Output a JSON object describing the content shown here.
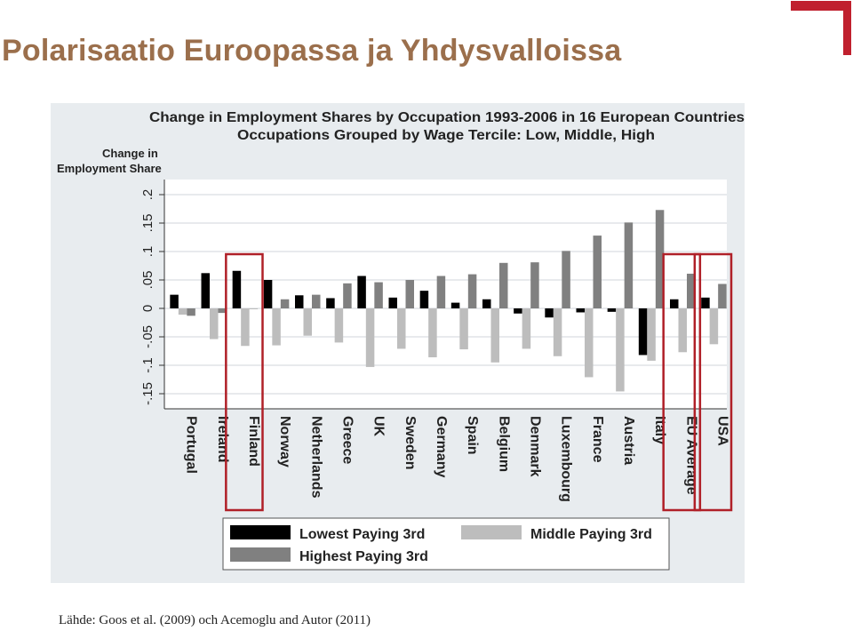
{
  "slide": {
    "title": "Polarisaatio Euroopassa ja Yhdysvalloissa",
    "source": "Lähde: Goos et al. (2009) och Acemoglu and Autor  (2011)",
    "accent_color": "#c0202e",
    "title_color": "#9b6f4c"
  },
  "chart_data": {
    "type": "bar",
    "title": "Change in Employment Shares by Occupation 1993-2006 in 16 European Countries",
    "subtitle": "Occupations Grouped by Wage Tercile: Low, Middle, High",
    "ylabel_line1": "Change in",
    "ylabel_line2": "Employment Share",
    "ylim": [
      -0.17,
      0.22
    ],
    "yticks": [
      -0.15,
      -0.1,
      -0.05,
      0,
      0.05,
      0.1,
      0.15,
      0.2
    ],
    "ytick_labels": [
      "-.15",
      "-.1",
      "-.05",
      "0",
      ".05",
      ".1",
      ".15",
      ".2"
    ],
    "grid": true,
    "legend_position": "bottom",
    "categories": [
      "Portugal",
      "Ireland",
      "Finland",
      "Norway",
      "Netherlands",
      "Greece",
      "UK",
      "Sweden",
      "Germany",
      "Spain",
      "Belgium",
      "Denmark",
      "Luxembourg",
      "France",
      "Austria",
      "Italy",
      "EU Average",
      "USA"
    ],
    "series": [
      {
        "name": "Lowest Paying 3rd",
        "color": "#000000",
        "values": [
          0.024,
          0.062,
          0.066,
          0.05,
          0.023,
          0.018,
          0.057,
          0.019,
          0.031,
          0.01,
          0.016,
          -0.009,
          -0.016,
          -0.007,
          -0.006,
          -0.082,
          0.016,
          0.019
        ]
      },
      {
        "name": "Middle Paying 3rd",
        "color": "#bdbdbd",
        "values": [
          -0.011,
          -0.054,
          -0.066,
          -0.065,
          -0.048,
          -0.06,
          -0.103,
          -0.071,
          -0.086,
          -0.072,
          -0.095,
          -0.071,
          -0.084,
          -0.121,
          -0.146,
          -0.092,
          -0.077,
          -0.063
        ]
      },
      {
        "name": "Highest Paying 3rd",
        "color": "#808080",
        "values": [
          -0.013,
          -0.008,
          0.0,
          0.016,
          0.024,
          0.044,
          0.046,
          0.05,
          0.057,
          0.06,
          0.08,
          0.081,
          0.101,
          0.128,
          0.151,
          0.173,
          0.061,
          0.043
        ]
      }
    ],
    "highlighted": [
      "Finland",
      "EU Average",
      "USA"
    ],
    "highlight_color": "#b02028"
  }
}
